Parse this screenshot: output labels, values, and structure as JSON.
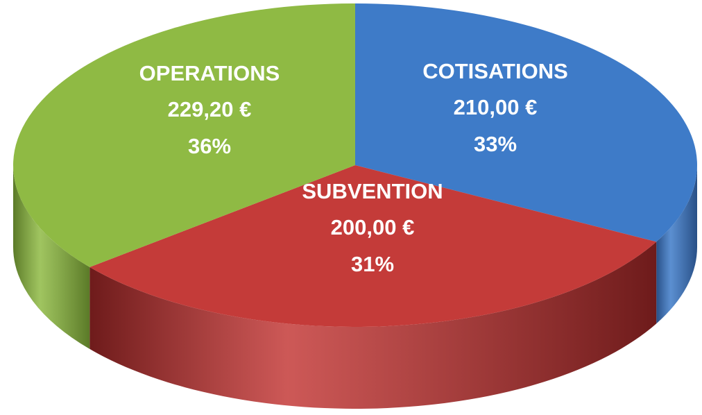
{
  "chart_data": {
    "type": "pie",
    "categories": [
      "COTISATIONS",
      "SUBVENTION",
      "OPERATIONS"
    ],
    "values": [
      210.0,
      200.0,
      229.2
    ],
    "value_labels": [
      "210,00 €",
      "200,00 €",
      "229,20 €"
    ],
    "percents": [
      33,
      31,
      36
    ],
    "percent_labels": [
      "33%",
      "31%",
      "36%"
    ],
    "colors": [
      "#3e7bc8",
      "#c43b39",
      "#8fba44"
    ],
    "side_colors": [
      "#284f86",
      "#6e1b1b",
      "#5b7a28"
    ]
  }
}
